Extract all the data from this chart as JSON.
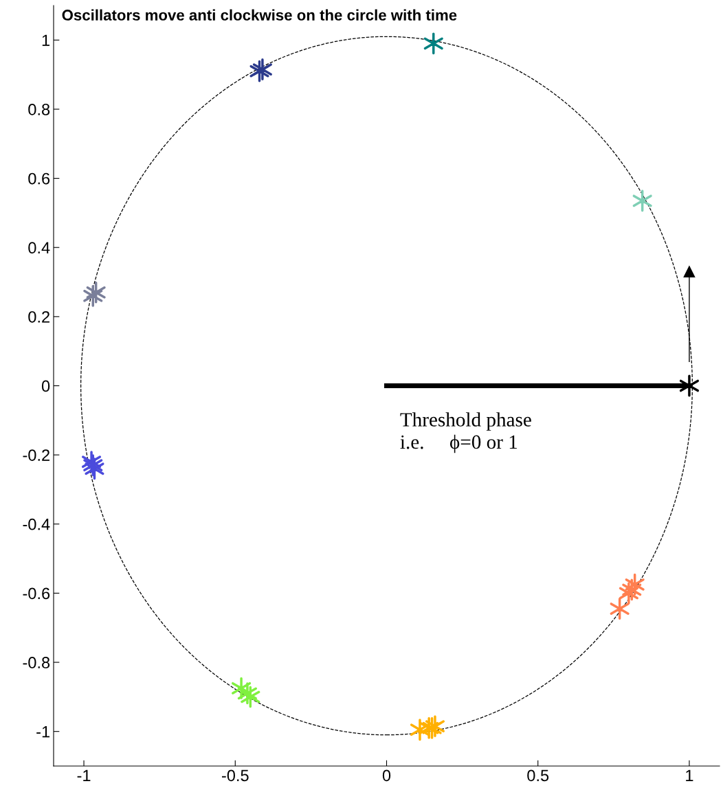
{
  "chart_data": {
    "type": "scatter",
    "title": "Oscillators move anti clockwise on the circle with time",
    "xlim": [
      -1.1,
      1.1
    ],
    "ylim": [
      -1.1,
      1.1
    ],
    "xticks": [
      -1,
      -0.5,
      0,
      0.5,
      1
    ],
    "yticks": [
      -1,
      -0.8,
      -0.6,
      -0.4,
      -0.2,
      0,
      0.2,
      0.4,
      0.6,
      0.8,
      1
    ],
    "grid": false,
    "legend": false,
    "marker": "cross",
    "series": [
      {
        "type": "line",
        "line_style": "solid",
        "marker": "none",
        "color": "#000000",
        "x": [
          0,
          1.0
        ],
        "values": [
          0,
          0
        ]
      },
      {
        "type": "line",
        "line_style": "solid",
        "marker": "triangle",
        "color": "#000000",
        "x": [
          1.0,
          1.0
        ],
        "values": [
          0.07,
          0.33
        ]
      },
      {
        "color": "#008080",
        "x": [
          0.155
        ],
        "values": [
          0.99
        ]
      },
      {
        "color": "#2b3a8c",
        "x": [
          -0.42,
          -0.41
        ],
        "values": [
          0.91,
          0.915
        ]
      },
      {
        "color": "#7fcfb5",
        "x": [
          0.845
        ],
        "values": [
          0.535
        ]
      },
      {
        "color": "#7a7f9a",
        "x": [
          -0.97,
          -0.96
        ],
        "values": [
          0.26,
          0.27
        ]
      },
      {
        "color": "#4b4bdc",
        "x": [
          -0.975,
          -0.965,
          -0.97
        ],
        "values": [
          -0.22,
          -0.24,
          -0.23
        ]
      },
      {
        "color": "#80f040",
        "x": [
          -0.48,
          -0.45,
          -0.46
        ],
        "values": [
          -0.875,
          -0.9,
          -0.89
        ]
      },
      {
        "color": "#ffb000",
        "x": [
          0.11,
          0.14,
          0.16,
          0.15
        ],
        "values": [
          -0.995,
          -0.99,
          -0.985,
          -0.99
        ]
      },
      {
        "color": "#ff7f50",
        "x": [
          0.77,
          0.8,
          0.82,
          0.81
        ],
        "values": [
          -0.645,
          -0.6,
          -0.575,
          -0.59
        ]
      },
      {
        "color": "#000000",
        "x": [
          1.0
        ],
        "values": [
          0.0
        ]
      }
    ],
    "annotations": [
      "Threshold phase\ni.e.     ϕ=0 or 1"
    ]
  }
}
